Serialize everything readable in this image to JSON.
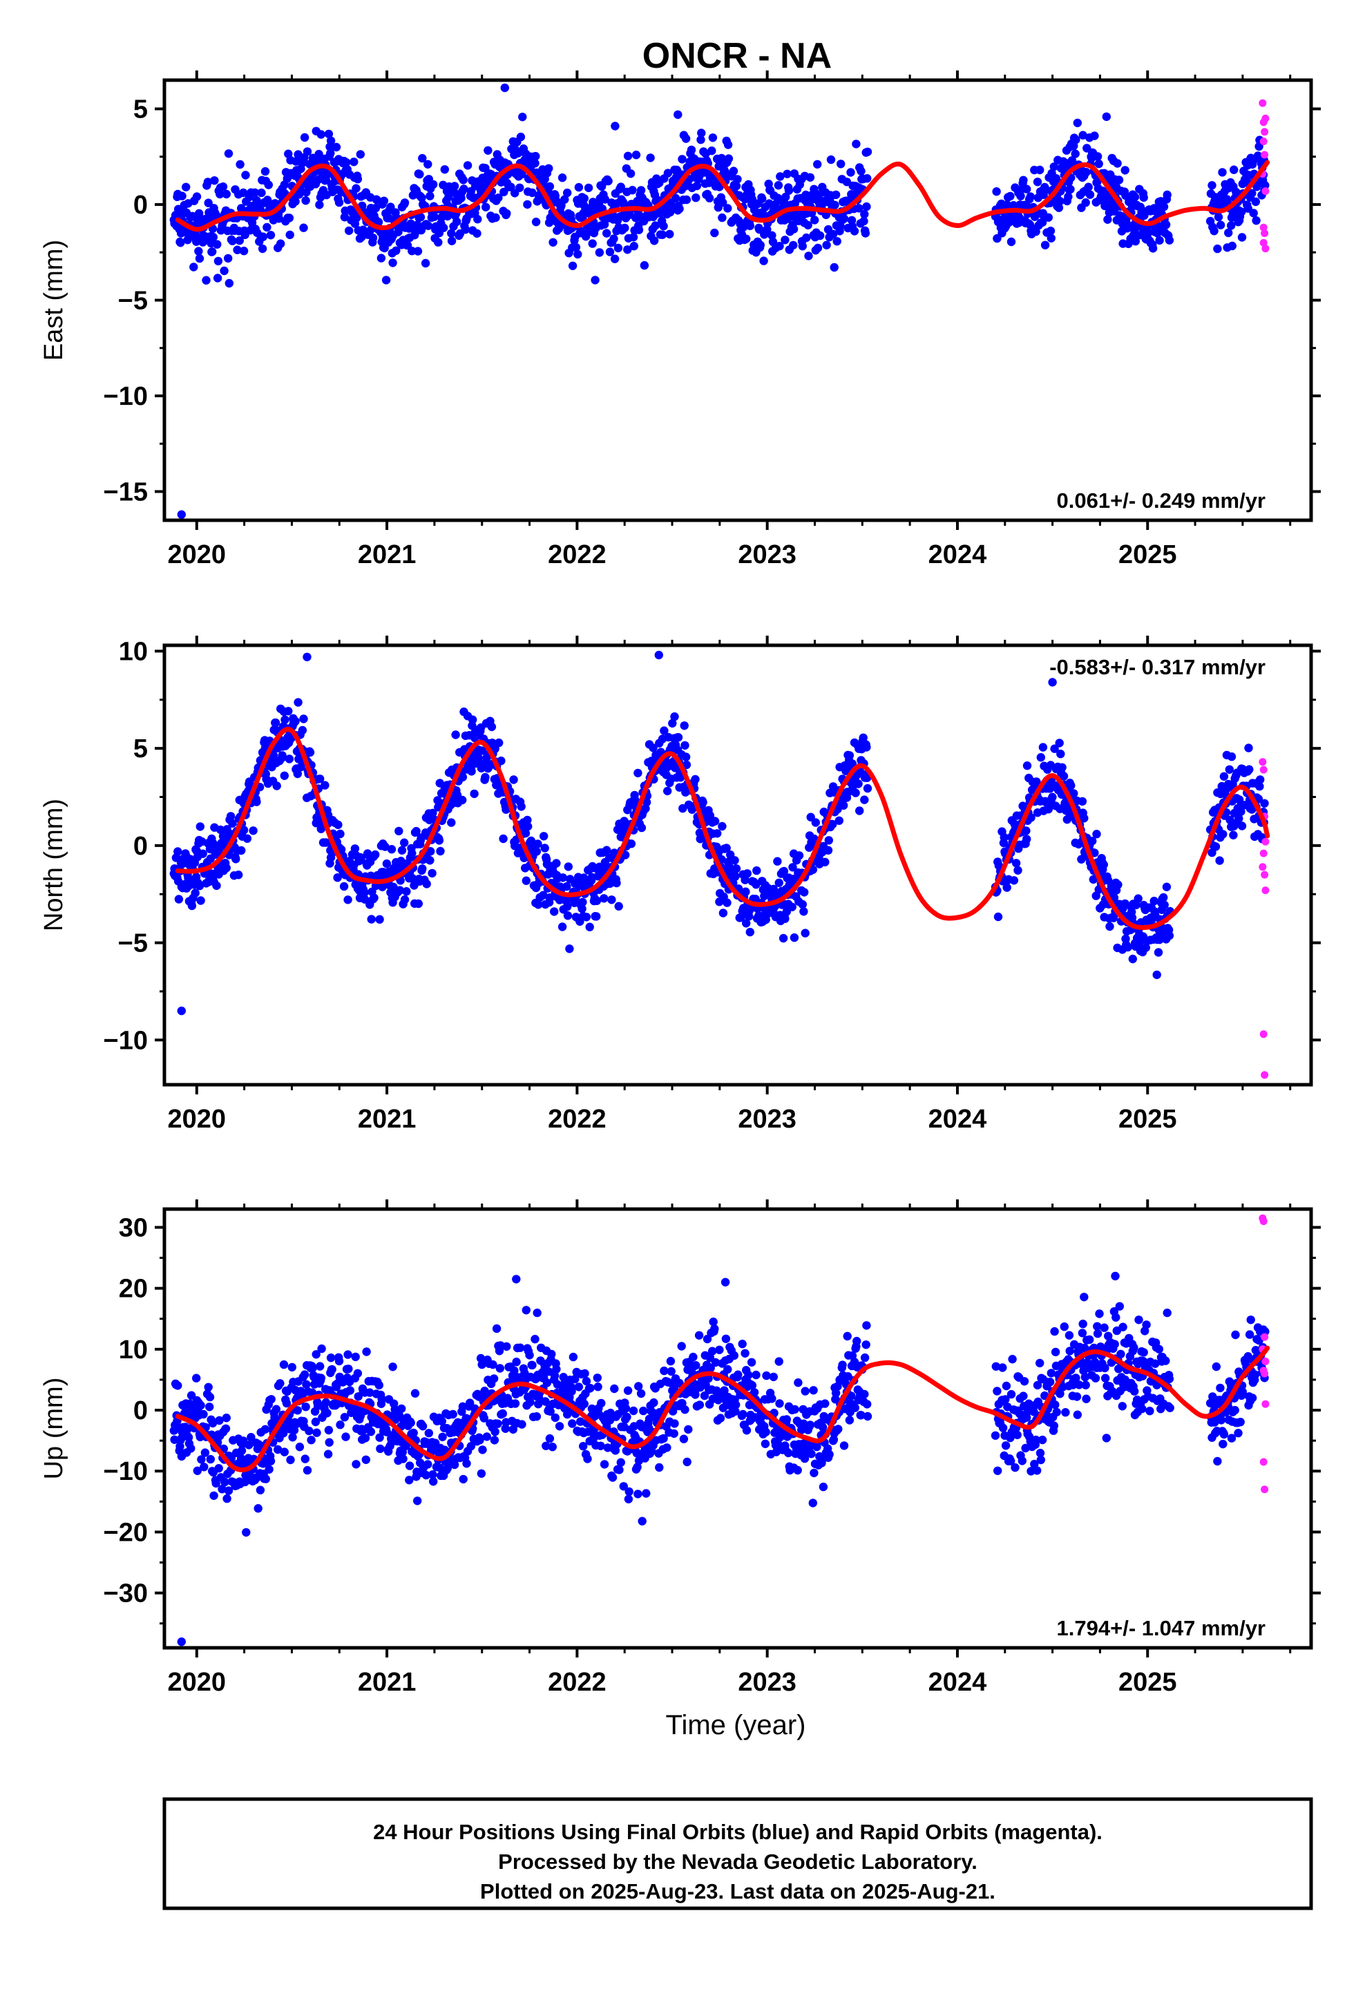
{
  "figure": {
    "title": "ONCR - NA",
    "xlabel": "Time (year)",
    "footer": [
      "24 Hour Positions Using Final Orbits (blue) and Rapid Orbits (magenta).",
      "Processed by the Nevada Geodetic Laboratory.",
      "Plotted on 2025-Aug-23. Last data on 2025-Aug-21."
    ]
  },
  "colors": {
    "final": "#0000ff",
    "rapid": "#ff22ff",
    "model": "#ff0000",
    "axis": "#000000"
  },
  "chart_data": [
    {
      "type": "scatter",
      "component": "east",
      "ylabel": "East (mm)",
      "xlim": [
        2019.83,
        2025.86
      ],
      "ylim": [
        -16.5,
        6.5
      ],
      "yticks": [
        5,
        0,
        -5,
        -10,
        -15
      ],
      "yticklabels": [
        "5",
        "0",
        "−5",
        "−10",
        "−15"
      ],
      "xticks": [
        2020,
        2021,
        2022,
        2023,
        2024,
        2025
      ],
      "xticklabels": [
        "2020",
        "2021",
        "2022",
        "2023",
        "2024",
        "2025"
      ],
      "rate_label": "0.061+/- 0.249 mm/yr",
      "rate_position": "bottom-right",
      "model": {
        "x": [
          2019.9,
          2020.0,
          2020.1,
          2020.2,
          2020.3,
          2020.4,
          2020.5,
          2020.6,
          2020.7,
          2020.8,
          2020.9,
          2021.0,
          2021.1,
          2021.2,
          2021.3,
          2021.4,
          2021.5,
          2021.6,
          2021.7,
          2021.8,
          2021.9,
          2022.0,
          2022.1,
          2022.2,
          2022.3,
          2022.4,
          2022.5,
          2022.6,
          2022.7,
          2022.8,
          2022.9,
          2023.0,
          2023.1,
          2023.2,
          2023.3,
          2023.4,
          2023.5,
          2023.6,
          2023.7,
          2023.8,
          2023.9,
          2024.0,
          2024.1,
          2024.2,
          2024.3,
          2024.4,
          2024.5,
          2024.6,
          2024.7,
          2024.8,
          2024.9,
          2025.0,
          2025.1,
          2025.2,
          2025.3,
          2025.4,
          2025.5,
          2025.6,
          2025.63
        ],
        "y": [
          -0.8,
          -1.3,
          -0.9,
          -0.5,
          -0.5,
          -0.4,
          0.6,
          1.8,
          1.9,
          0.5,
          -0.9,
          -1.2,
          -0.6,
          -0.3,
          -0.2,
          -0.3,
          0.3,
          1.6,
          2.0,
          1.0,
          -0.6,
          -1.1,
          -0.6,
          -0.3,
          -0.2,
          -0.2,
          0.6,
          1.8,
          1.9,
          0.7,
          -0.6,
          -0.8,
          -0.3,
          -0.2,
          -0.3,
          -0.3,
          0.5,
          1.6,
          2.1,
          1.0,
          -0.6,
          -1.1,
          -0.7,
          -0.4,
          -0.3,
          -0.3,
          0.5,
          1.8,
          2.0,
          0.8,
          -0.5,
          -1.0,
          -0.6,
          -0.3,
          -0.2,
          -0.3,
          0.5,
          1.8,
          2.2
        ]
      },
      "final_data": {
        "segments": [
          [
            2019.88,
            2023.53
          ],
          [
            2024.2,
            2025.12
          ],
          [
            2025.33,
            2025.62
          ]
        ],
        "scatter_sd": 1.0,
        "outliers": [
          [
            2019.92,
            -16.2
          ],
          [
            2021.62,
            6.1
          ],
          [
            2022.53,
            4.7
          ],
          [
            2022.2,
            4.1
          ]
        ]
      },
      "rapid_data": {
        "points": [
          [
            2025.605,
            5.3
          ],
          [
            2025.61,
            4.3
          ],
          [
            2025.615,
            3.8
          ],
          [
            2025.62,
            4.5
          ],
          [
            2025.61,
            3.3
          ],
          [
            2025.615,
            2.6
          ],
          [
            2025.605,
            1.6
          ],
          [
            2025.62,
            0.7
          ],
          [
            2025.61,
            -1.2
          ],
          [
            2025.615,
            -1.5
          ],
          [
            2025.61,
            -2.0
          ],
          [
            2025.62,
            -2.3
          ]
        ]
      }
    },
    {
      "type": "scatter",
      "component": "north",
      "ylabel": "North (mm)",
      "xlim": [
        2019.83,
        2025.86
      ],
      "ylim": [
        -12.3,
        10.3
      ],
      "yticks": [
        10,
        5,
        0,
        -5,
        -10
      ],
      "yticklabels": [
        "10",
        "5",
        "0",
        "−5",
        "−10"
      ],
      "xticks": [
        2020,
        2021,
        2022,
        2023,
        2024,
        2025
      ],
      "xticklabels": [
        "2020",
        "2021",
        "2022",
        "2023",
        "2024",
        "2025"
      ],
      "rate_label": "-0.583+/- 0.317 mm/yr",
      "rate_position": "top-right",
      "model": {
        "x": [
          2019.9,
          2020.0,
          2020.1,
          2020.2,
          2020.3,
          2020.4,
          2020.5,
          2020.6,
          2020.7,
          2020.8,
          2020.9,
          2021.0,
          2021.1,
          2021.2,
          2021.3,
          2021.4,
          2021.5,
          2021.6,
          2021.7,
          2021.8,
          2021.9,
          2022.0,
          2022.1,
          2022.2,
          2022.3,
          2022.4,
          2022.5,
          2022.6,
          2022.7,
          2022.8,
          2022.9,
          2023.0,
          2023.1,
          2023.2,
          2023.3,
          2023.4,
          2023.5,
          2023.6,
          2023.7,
          2023.8,
          2023.9,
          2024.0,
          2024.1,
          2024.2,
          2024.3,
          2024.4,
          2024.5,
          2024.6,
          2024.7,
          2024.8,
          2024.9,
          2025.0,
          2025.1,
          2025.2,
          2025.3,
          2025.4,
          2025.5,
          2025.6,
          2025.63
        ],
        "y": [
          -1.3,
          -1.3,
          -0.9,
          0.5,
          2.9,
          5.2,
          5.9,
          3.6,
          0.5,
          -1.4,
          -1.8,
          -1.8,
          -1.3,
          -0.2,
          2.0,
          4.3,
          5.3,
          3.6,
          0.5,
          -1.5,
          -2.4,
          -2.5,
          -2.1,
          -0.9,
          1.3,
          3.8,
          4.7,
          2.9,
          0.0,
          -2.0,
          -2.9,
          -3.0,
          -2.6,
          -1.4,
          0.9,
          3.1,
          4.1,
          2.6,
          -0.4,
          -2.6,
          -3.6,
          -3.7,
          -3.3,
          -2.1,
          0.2,
          2.4,
          3.6,
          2.2,
          -0.6,
          -2.8,
          -4.0,
          -4.2,
          -3.8,
          -2.7,
          -0.4,
          2.0,
          3.0,
          1.5,
          0.5
        ]
      },
      "final_data": {
        "segments": [
          [
            2019.88,
            2023.53
          ],
          [
            2024.2,
            2025.12
          ],
          [
            2025.33,
            2025.62
          ]
        ],
        "scatter_sd": 0.9,
        "outliers": [
          [
            2019.92,
            -8.5
          ],
          [
            2022.43,
            9.8
          ],
          [
            2024.5,
            8.4
          ],
          [
            2020.58,
            9.7
          ]
        ]
      },
      "rapid_data": {
        "points": [
          [
            2025.605,
            4.3
          ],
          [
            2025.61,
            3.9
          ],
          [
            2025.615,
            1.5
          ],
          [
            2025.62,
            0.2
          ],
          [
            2025.61,
            -0.4
          ],
          [
            2025.605,
            -1.1
          ],
          [
            2025.615,
            -1.5
          ],
          [
            2025.62,
            -2.3
          ],
          [
            2025.61,
            -9.7
          ],
          [
            2025.615,
            -11.8
          ]
        ]
      }
    },
    {
      "type": "scatter",
      "component": "up",
      "ylabel": "Up (mm)",
      "xlim": [
        2019.83,
        2025.86
      ],
      "ylim": [
        -39.0,
        33.0
      ],
      "yticks": [
        30,
        20,
        10,
        0,
        -10,
        -20,
        -30
      ],
      "yticklabels": [
        "30",
        "20",
        "10",
        "0",
        "−10",
        "−20",
        "−30"
      ],
      "xticks": [
        2020,
        2021,
        2022,
        2023,
        2024,
        2025
      ],
      "xticklabels": [
        "2020",
        "2021",
        "2022",
        "2023",
        "2024",
        "2025"
      ],
      "rate_label": "1.794+/- 1.047 mm/yr",
      "rate_position": "bottom-right",
      "model": {
        "x": [
          2019.9,
          2020.0,
          2020.1,
          2020.2,
          2020.3,
          2020.4,
          2020.5,
          2020.6,
          2020.7,
          2020.8,
          2020.9,
          2021.0,
          2021.1,
          2021.2,
          2021.3,
          2021.4,
          2021.5,
          2021.6,
          2021.7,
          2021.8,
          2021.9,
          2022.0,
          2022.1,
          2022.2,
          2022.3,
          2022.4,
          2022.5,
          2022.6,
          2022.7,
          2022.8,
          2022.9,
          2023.0,
          2023.1,
          2023.2,
          2023.3,
          2023.4,
          2023.5,
          2023.6,
          2023.7,
          2023.8,
          2023.9,
          2024.0,
          2024.1,
          2024.2,
          2024.3,
          2024.4,
          2024.5,
          2024.6,
          2024.7,
          2024.8,
          2024.9,
          2025.0,
          2025.1,
          2025.2,
          2025.3,
          2025.4,
          2025.5,
          2025.6,
          2025.63
        ],
        "y": [
          -1.0,
          -2.5,
          -6.0,
          -9.5,
          -9.0,
          -4.0,
          0.5,
          2.0,
          2.3,
          1.5,
          0.5,
          -1.5,
          -4.5,
          -7.0,
          -7.8,
          -4.0,
          0.5,
          3.2,
          4.3,
          3.5,
          2.0,
          0.0,
          -2.5,
          -4.5,
          -6.0,
          -4.0,
          1.5,
          5.0,
          6.0,
          4.8,
          2.5,
          -0.5,
          -3.0,
          -4.5,
          -4.5,
          2.0,
          6.5,
          7.7,
          7.5,
          6.0,
          4.0,
          2.0,
          0.5,
          -0.5,
          -2.0,
          -2.5,
          3.0,
          7.5,
          9.5,
          9.0,
          7.0,
          6.0,
          4.0,
          1.0,
          -1.0,
          0.5,
          5.5,
          9.0,
          10.2
        ]
      },
      "final_data": {
        "segments": [
          [
            2019.88,
            2023.53
          ],
          [
            2024.2,
            2025.12
          ],
          [
            2025.33,
            2025.62
          ]
        ],
        "scatter_sd": 3.8,
        "outliers": [
          [
            2019.92,
            -38.0
          ],
          [
            2021.68,
            21.5
          ],
          [
            2022.78,
            21.0
          ],
          [
            2024.83,
            22.0
          ]
        ]
      },
      "rapid_data": {
        "points": [
          [
            2025.605,
            31.5
          ],
          [
            2025.61,
            31.0
          ],
          [
            2025.615,
            12.0
          ],
          [
            2025.605,
            10.0
          ],
          [
            2025.62,
            8.0
          ],
          [
            2025.61,
            6.5
          ],
          [
            2025.615,
            6.0
          ],
          [
            2025.62,
            1.0
          ],
          [
            2025.61,
            -8.5
          ],
          [
            2025.615,
            -13.0
          ]
        ]
      }
    }
  ]
}
